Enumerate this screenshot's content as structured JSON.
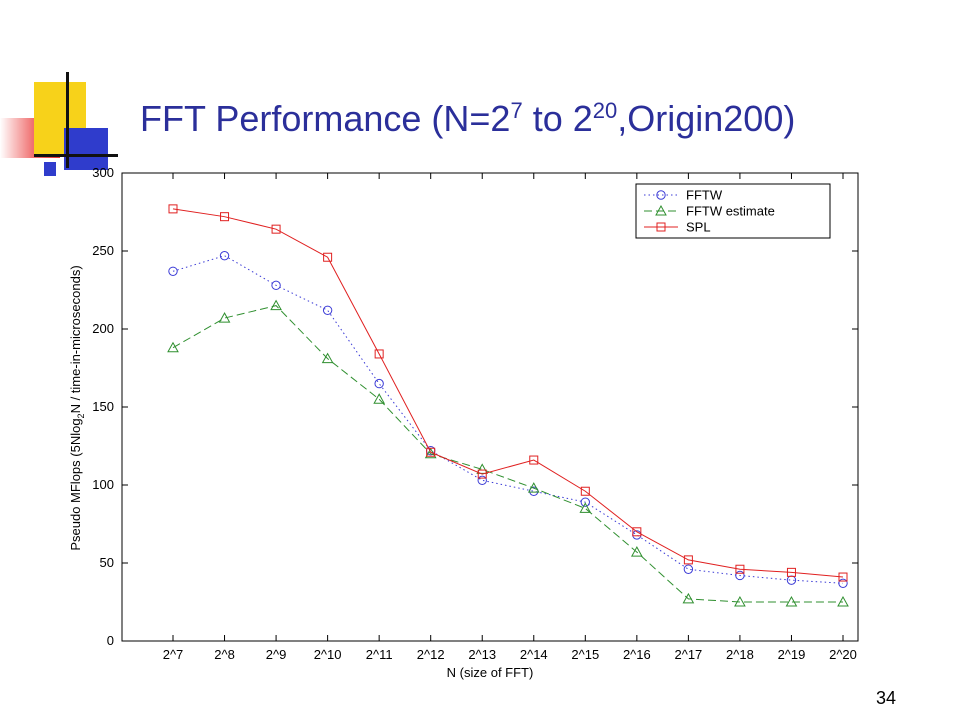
{
  "slide": {
    "title_prefix": "FFT Performance (N=2",
    "title_exp1": "7",
    "title_middle": " to 2",
    "title_exp2": "20",
    "title_suffix": ",Origin200)",
    "page_number": "34"
  },
  "colors": {
    "title": "#2b2f9a",
    "fftw": "#3b3bd6",
    "fftw_estimate": "#2f8f2f",
    "spl": "#e02020"
  },
  "chart_data": {
    "type": "line",
    "title": "",
    "xlabel": "N (size of FFT)",
    "ylabel_parts": [
      "Pseudo MFlops (5Nlog",
      "2",
      "N / time-in-microseconds)"
    ],
    "categories": [
      "2^7",
      "2^8",
      "2^9",
      "2^10",
      "2^11",
      "2^12",
      "2^13",
      "2^14",
      "2^15",
      "2^16",
      "2^17",
      "2^18",
      "2^19",
      "2^20"
    ],
    "ylim": [
      0,
      300
    ],
    "yticks": [
      0,
      50,
      100,
      150,
      200,
      250,
      300
    ],
    "legend_position": "top-right",
    "grid": false,
    "series": [
      {
        "name": "FFTW",
        "marker": "circle",
        "style": "dotted",
        "color": "#3b3bd6",
        "values": [
          237,
          247,
          228,
          212,
          165,
          122,
          103,
          96,
          89,
          68,
          46,
          42,
          39,
          37
        ]
      },
      {
        "name": "FFTW estimate",
        "marker": "triangle",
        "style": "dashed",
        "color": "#2f8f2f",
        "values": [
          188,
          207,
          215,
          181,
          155,
          120,
          110,
          98,
          85,
          57,
          27,
          25,
          25,
          25
        ]
      },
      {
        "name": "SPL",
        "marker": "square",
        "style": "solid",
        "color": "#e02020",
        "values": [
          277,
          272,
          264,
          246,
          184,
          121,
          107,
          116,
          96,
          70,
          52,
          46,
          44,
          41
        ]
      }
    ]
  }
}
